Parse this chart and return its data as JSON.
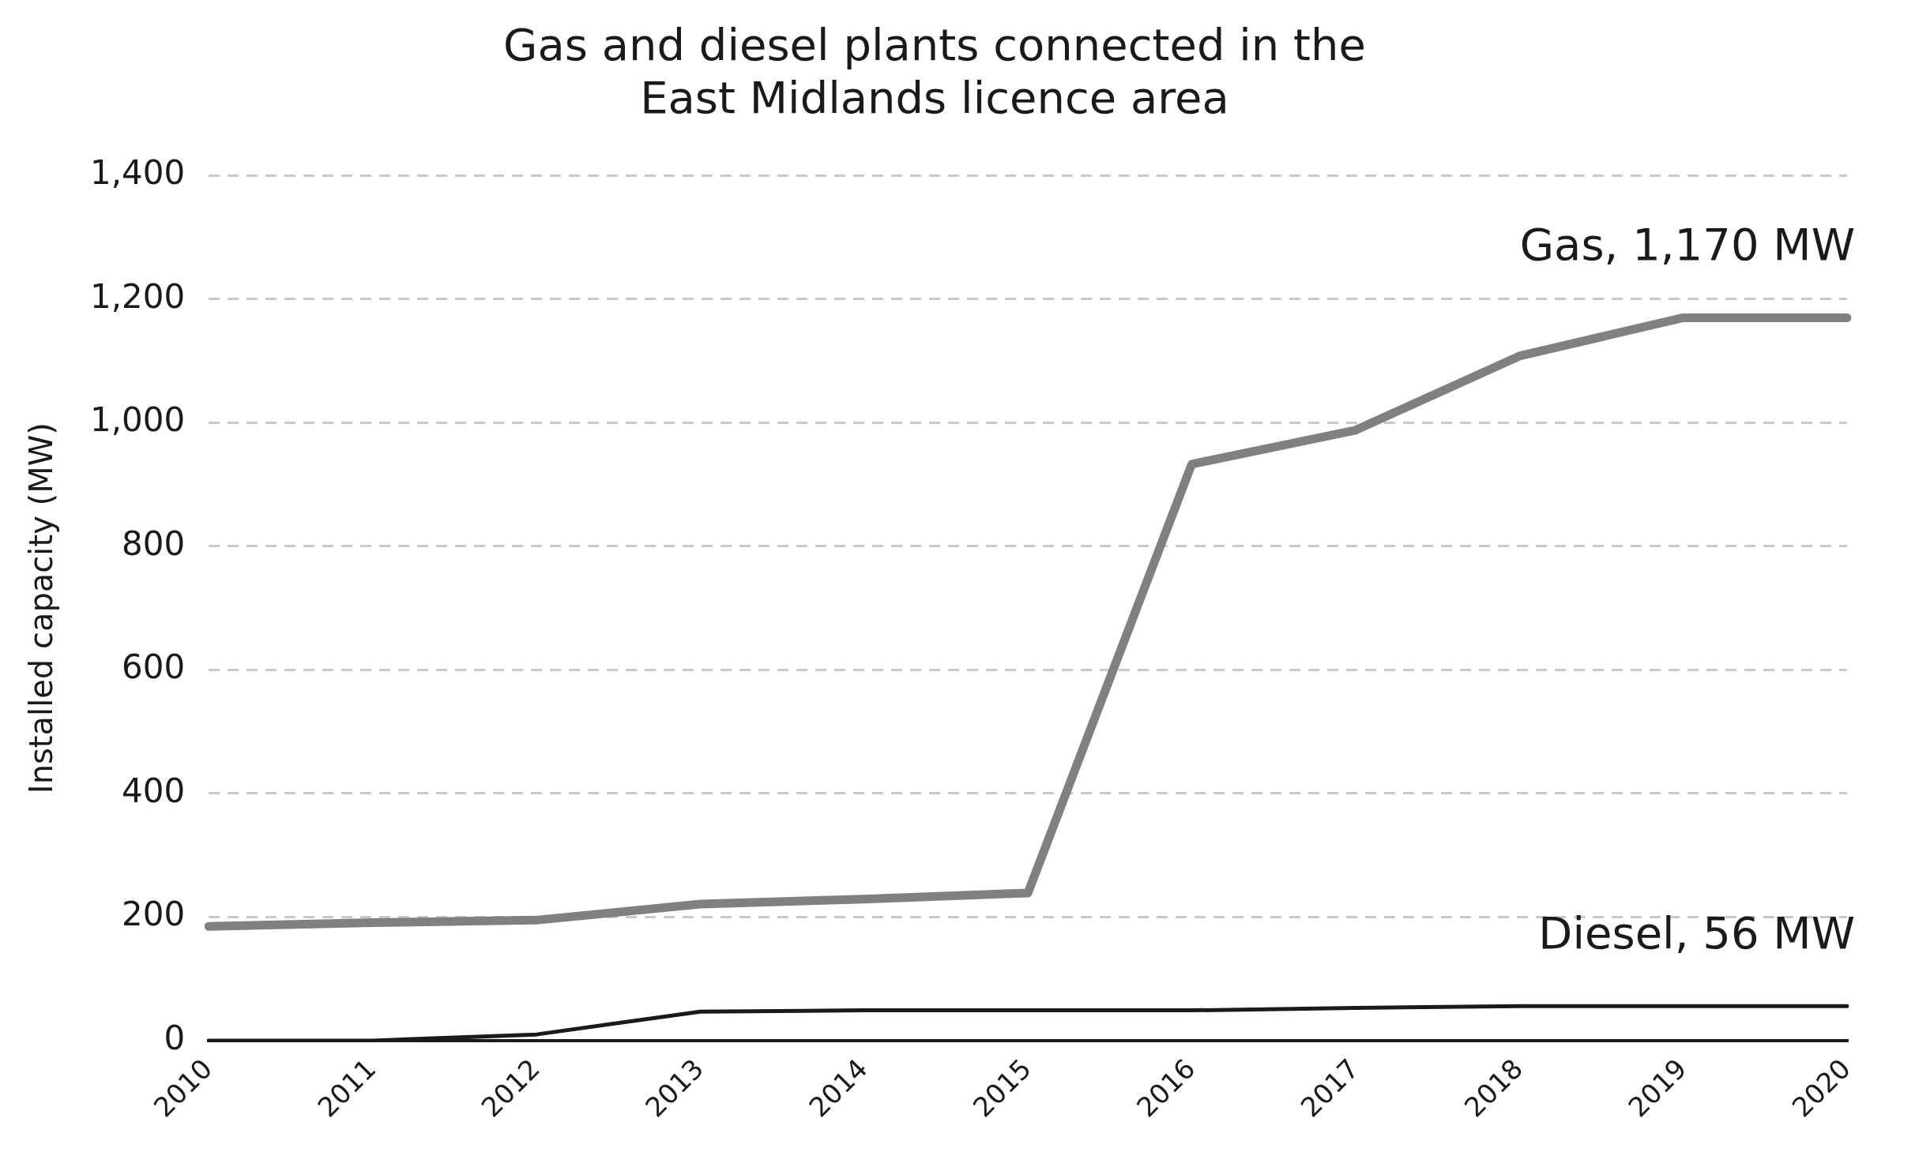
{
  "chart_data": {
    "type": "line",
    "title": [
      "Gas and diesel plants connected in the",
      "East Midlands licence area"
    ],
    "ylabel": "Installed capacity (MW)",
    "categories": [
      "2010",
      "2011",
      "2012",
      "2013",
      "2014",
      "2015",
      "2016",
      "2017",
      "2018",
      "2019",
      "2020"
    ],
    "series": [
      {
        "name": "Gas, 1,170 MW",
        "color": "#808080",
        "values": [
          185,
          191,
          195,
          221,
          229,
          239,
          933,
          988,
          1108,
          1170,
          1170
        ]
      },
      {
        "name": "Diesel, 56 MW",
        "color": "#1a1a1a",
        "values": [
          0,
          0,
          10,
          47,
          49,
          49,
          49,
          53,
          56,
          56,
          56
        ]
      }
    ],
    "ylim": [
      0,
      1400
    ],
    "yticks": [
      {
        "value": 0,
        "label": "0"
      },
      {
        "value": 200,
        "label": "200"
      },
      {
        "value": 400,
        "label": "400"
      },
      {
        "value": 600,
        "label": "600"
      },
      {
        "value": 800,
        "label": "800"
      },
      {
        "value": 1000,
        "label": "1,000"
      },
      {
        "value": 1200,
        "label": "1,200"
      },
      {
        "value": 1400,
        "label": "1,400"
      }
    ],
    "grid": "y",
    "legend": false,
    "marker": "none",
    "line_style": "solid"
  }
}
